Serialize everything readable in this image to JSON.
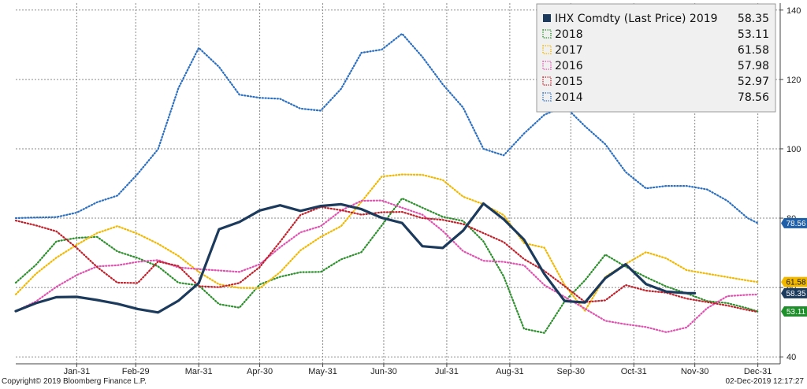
{
  "chart_data": {
    "type": "line",
    "x_ticks": [
      "Jan-31",
      "Feb-29",
      "Mar-31",
      "Apr-30",
      "May-31",
      "Jun-30",
      "Jul-31",
      "Aug-31",
      "Sep-30",
      "Oct-31",
      "Nov-30",
      "Dec-31"
    ],
    "x_ticks_day": [
      30,
      59,
      90,
      120,
      151,
      181,
      212,
      243,
      273,
      304,
      334,
      365
    ],
    "y_ticks": [
      40,
      60,
      80,
      100,
      120,
      140
    ],
    "ylim": [
      38,
      142
    ],
    "xlim": [
      0,
      376
    ],
    "grid": true,
    "legend_position": "top-right",
    "series": [
      {
        "name": "IHX Comdty (Last Price) 2019",
        "last_label": "58.35",
        "color": "#1b3a5c",
        "style": "solid",
        "x": [
          0,
          10,
          20,
          30,
          40,
          50,
          60,
          70,
          80,
          90,
          100,
          110,
          120,
          130,
          140,
          150,
          160,
          170,
          180,
          190,
          200,
          210,
          220,
          230,
          240,
          250,
          260,
          270,
          280,
          290,
          300,
          310,
          320,
          330,
          334
        ],
        "y": [
          53.2,
          55.5,
          57.2,
          57.3,
          56.4,
          55.3,
          53.8,
          52.8,
          56.2,
          61.3,
          76.8,
          78.9,
          82.2,
          83.7,
          82.1,
          83.5,
          84.0,
          82.6,
          80.1,
          78.6,
          71.9,
          71.4,
          76.4,
          84.2,
          79.7,
          73.8,
          63.9,
          56.1,
          55.7,
          62.7,
          66.7,
          61.0,
          58.8,
          58.4,
          58.35
        ]
      },
      {
        "name": "2018",
        "last_label": "53.11",
        "color": "#2c8f2c",
        "style": "dotted",
        "x": [
          0,
          10,
          20,
          30,
          40,
          50,
          60,
          70,
          80,
          90,
          100,
          110,
          120,
          130,
          140,
          150,
          160,
          170,
          180,
          190,
          200,
          210,
          220,
          230,
          240,
          250,
          260,
          270,
          280,
          290,
          300,
          310,
          320,
          330,
          340,
          350,
          360,
          365
        ],
        "y": [
          61.4,
          66.6,
          73.3,
          74.3,
          74.6,
          70.4,
          68.5,
          66.1,
          61.4,
          60.6,
          55.2,
          54.2,
          60.9,
          63.1,
          64.4,
          64.5,
          68.1,
          70.2,
          77.9,
          85.7,
          83.0,
          80.4,
          79.2,
          73.3,
          63.2,
          48.1,
          46.9,
          56.0,
          62.1,
          69.5,
          66.0,
          63.0,
          60.3,
          58.3,
          56.1,
          55.5,
          54.0,
          53.11
        ]
      },
      {
        "name": "2017",
        "last_label": "61.58",
        "color": "#f0b800",
        "style": "dotted",
        "x": [
          0,
          10,
          20,
          30,
          40,
          50,
          60,
          70,
          80,
          90,
          100,
          110,
          120,
          130,
          140,
          150,
          160,
          170,
          180,
          190,
          200,
          210,
          220,
          230,
          240,
          250,
          260,
          270,
          280,
          290,
          300,
          310,
          320,
          330,
          340,
          350,
          360,
          365
        ],
        "y": [
          58.0,
          64.0,
          68.6,
          72.3,
          75.7,
          77.7,
          75.5,
          72.6,
          69.1,
          64.5,
          60.9,
          59.9,
          59.8,
          64.4,
          70.7,
          74.6,
          77.7,
          84.7,
          92.0,
          92.6,
          92.5,
          91.0,
          86.2,
          84.0,
          80.9,
          72.8,
          71.5,
          60.7,
          53.3,
          63.1,
          66.8,
          70.2,
          68.4,
          65.0,
          64.0,
          63.0,
          62.0,
          61.58
        ]
      },
      {
        "name": "2016",
        "last_label": "57.98",
        "color": "#e052b0",
        "style": "dotted",
        "x": [
          0,
          10,
          20,
          30,
          40,
          50,
          60,
          70,
          80,
          90,
          100,
          110,
          120,
          130,
          140,
          150,
          160,
          170,
          180,
          190,
          200,
          210,
          220,
          230,
          240,
          250,
          260,
          270,
          280,
          290,
          300,
          310,
          320,
          330,
          340,
          350,
          360,
          365
        ],
        "y": [
          53.2,
          56.0,
          60.2,
          63.6,
          66.1,
          66.4,
          67.4,
          67.9,
          65.8,
          65.3,
          64.9,
          64.5,
          66.7,
          71.6,
          75.9,
          77.7,
          82.2,
          85.0,
          85.1,
          83.0,
          81.0,
          76.3,
          70.5,
          67.7,
          67.4,
          66.4,
          60.7,
          57.3,
          53.9,
          50.4,
          49.4,
          48.6,
          47.1,
          48.5,
          54.0,
          57.5,
          57.9,
          57.98
        ]
      },
      {
        "name": "2015",
        "last_label": "52.97",
        "color": "#c0202a",
        "style": "dotted",
        "x": [
          0,
          10,
          20,
          30,
          40,
          50,
          60,
          70,
          80,
          90,
          100,
          110,
          120,
          130,
          140,
          150,
          160,
          170,
          180,
          190,
          200,
          210,
          220,
          230,
          240,
          250,
          260,
          270,
          280,
          290,
          300,
          310,
          320,
          330,
          340,
          350,
          360,
          365
        ],
        "y": [
          79.3,
          77.9,
          76.2,
          71.4,
          65.9,
          61.4,
          61.3,
          67.5,
          66.2,
          60.4,
          60.1,
          61.3,
          65.9,
          73.2,
          80.9,
          83.2,
          82.3,
          81.0,
          81.7,
          81.8,
          80.0,
          79.5,
          78.3,
          75.7,
          73.1,
          68.2,
          64.8,
          60.4,
          55.8,
          56.3,
          60.7,
          59.1,
          58.5,
          56.8,
          55.8,
          54.8,
          53.5,
          52.97
        ]
      },
      {
        "name": "2014",
        "last_label": "78.56",
        "color": "#2a6fc0",
        "style": "dotted",
        "x": [
          0,
          10,
          20,
          30,
          40,
          50,
          60,
          70,
          80,
          90,
          100,
          110,
          120,
          130,
          140,
          150,
          160,
          170,
          180,
          190,
          200,
          210,
          220,
          230,
          240,
          250,
          260,
          270,
          280,
          290,
          300,
          310,
          320,
          330,
          340,
          350,
          360,
          365
        ],
        "y": [
          80.0,
          80.2,
          80.3,
          81.6,
          84.6,
          86.5,
          92.8,
          99.9,
          117.5,
          129.1,
          123.6,
          115.6,
          114.7,
          114.4,
          111.6,
          111.0,
          117.3,
          127.7,
          128.6,
          133.2,
          126.5,
          118.6,
          111.9,
          100.0,
          98.1,
          104.4,
          109.8,
          112.3,
          106.5,
          101.3,
          93.3,
          88.6,
          89.3,
          89.3,
          88.3,
          85.0,
          80.0,
          78.56
        ]
      }
    ]
  },
  "legend": {
    "main_label": "IHX Comdty (Last Price) 2019",
    "main_value": "58.35",
    "rows": [
      {
        "label": "2018",
        "value": "53.11"
      },
      {
        "label": "2017",
        "value": "61.58"
      },
      {
        "label": "2016",
        "value": "57.98"
      },
      {
        "label": "2015",
        "value": "52.97"
      },
      {
        "label": "2014",
        "value": "78.56"
      }
    ]
  },
  "tags": [
    {
      "value": "78.56",
      "bg": "#1f5fa8",
      "fg": "#ffffff"
    },
    {
      "value": "61.58",
      "bg": "#f0b800",
      "fg": "#111111"
    },
    {
      "value": "58.35",
      "bg": "#1b3a5c",
      "fg": "#ffffff"
    },
    {
      "value": "53.11",
      "bg": "#1f8f2c",
      "fg": "#ffffff"
    }
  ],
  "footer": {
    "copyright": "Copyright© 2019 Bloomberg Finance L.P.",
    "timestamp": "02-Dec-2019 12:17:27"
  }
}
